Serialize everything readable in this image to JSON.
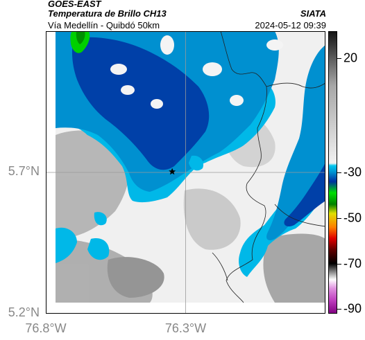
{
  "header": {
    "satellite": "GOES-EAST",
    "product": "Temperatura de Brillo CH13",
    "region": "Vía Medellín - Quibdó 50km",
    "agency": "SIATA",
    "timestamp": "2024-05-12 09:39"
  },
  "map": {
    "lat_labels": [
      {
        "text": "5.7°N",
        "value": 5.7
      },
      {
        "text": "5.2°N",
        "value": 5.2
      }
    ],
    "lon_labels": [
      {
        "text": "76.8°W",
        "value": -76.8
      },
      {
        "text": "76.3°W",
        "value": -76.3
      }
    ],
    "extent": {
      "lon_min": -76.8,
      "lon_max": -75.8,
      "lat_min": 5.2,
      "lat_max": 6.2
    },
    "marker": {
      "name": "star",
      "lon": -76.348,
      "lat": 5.703
    },
    "gridlines": true
  },
  "colorbar": {
    "range": [
      -92,
      32
    ],
    "ticks": [
      {
        "text": "20",
        "value": 20
      },
      {
        "text": "-30",
        "value": -30
      },
      {
        "text": "-50",
        "value": -50
      },
      {
        "text": "-70",
        "value": -70
      },
      {
        "text": "-90",
        "value": -90
      }
    ],
    "stops": [
      {
        "value": 32,
        "color": "#141414"
      },
      {
        "value": 8,
        "color": "#a8a8a8"
      },
      {
        "value": -26,
        "color": "#f2f2f2"
      },
      {
        "value": -27,
        "color": "#00c8f0"
      },
      {
        "value": -30,
        "color": "#0090d0"
      },
      {
        "value": -34,
        "color": "#0030a0"
      },
      {
        "value": -39,
        "color": "#00e000"
      },
      {
        "value": -44,
        "color": "#008000"
      },
      {
        "value": -48,
        "color": "#e0e000"
      },
      {
        "value": -54,
        "color": "#ff8000"
      },
      {
        "value": -59,
        "color": "#e00000"
      },
      {
        "value": -64,
        "color": "#600000"
      },
      {
        "value": -70,
        "color": "#000000"
      },
      {
        "value": -73,
        "color": "#707070"
      },
      {
        "value": -77,
        "color": "#ffffff"
      },
      {
        "value": -81,
        "color": "#e090e0"
      },
      {
        "value": -86,
        "color": "#c040c0"
      },
      {
        "value": -92,
        "color": "#800080"
      }
    ]
  }
}
